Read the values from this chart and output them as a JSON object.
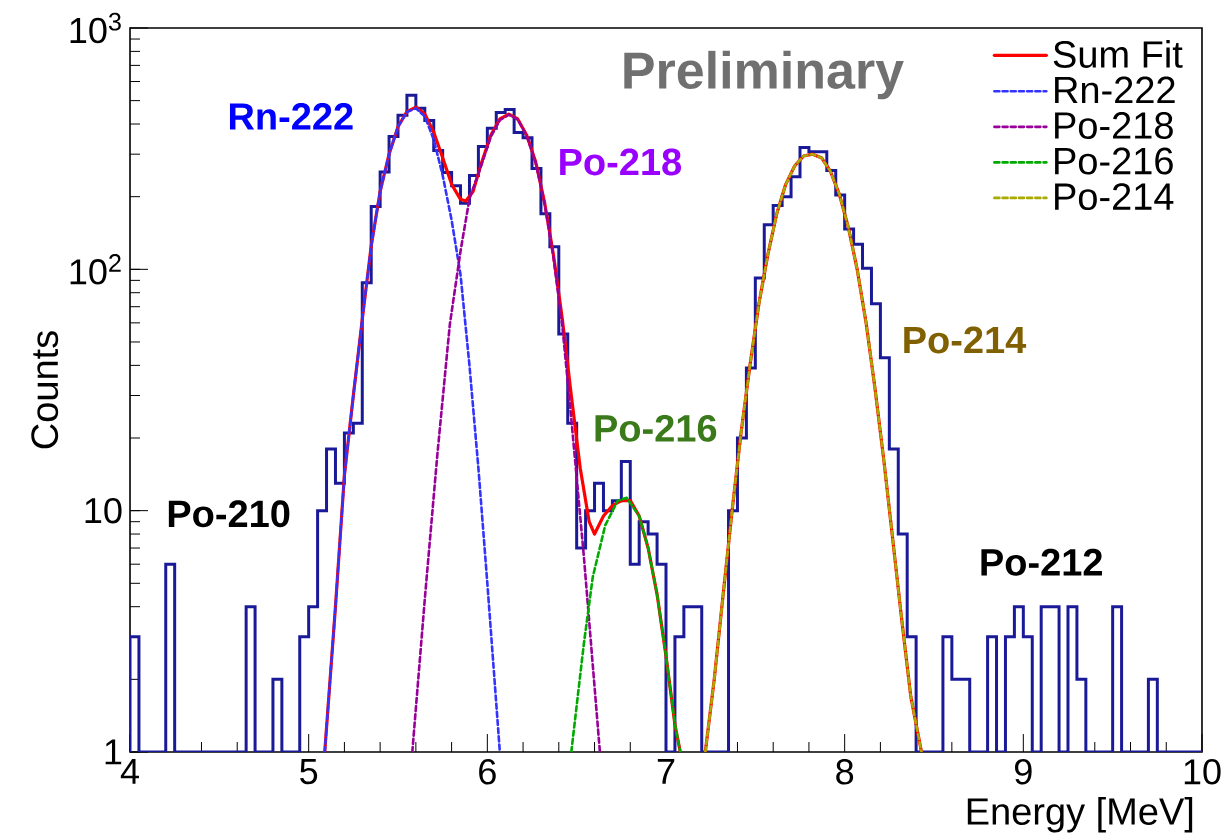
{
  "chart_data": {
    "type": "histogram",
    "xlabel": "Energy [MeV]",
    "ylabel": "Counts",
    "color": "#1a1a99",
    "bins": [
      4,
      4.05,
      4.1,
      4.15,
      4.2,
      4.25,
      4.3,
      4.35,
      4.4,
      4.45,
      4.5,
      4.55,
      4.6,
      4.65,
      4.7,
      4.75,
      4.8,
      4.85,
      4.9,
      4.95,
      5,
      5.05,
      5.1,
      5.15,
      5.2,
      5.25,
      5.3,
      5.35,
      5.4,
      5.45,
      5.5,
      5.55,
      5.6,
      5.65,
      5.7,
      5.75,
      5.8,
      5.85,
      5.9,
      5.95,
      6,
      6.05,
      6.1,
      6.15,
      6.2,
      6.25,
      6.3,
      6.35,
      6.4,
      6.45,
      6.5,
      6.55,
      6.6,
      6.65,
      6.7,
      6.75,
      6.8,
      6.85,
      6.9,
      6.95,
      7,
      7.05,
      7.1,
      7.15,
      7.2,
      7.25,
      7.3,
      7.35,
      7.4,
      7.45,
      7.5,
      7.55,
      7.6,
      7.65,
      7.7,
      7.75,
      7.8,
      7.85,
      7.9,
      7.95,
      8,
      8.05,
      8.1,
      8.15,
      8.2,
      8.25,
      8.3,
      8.35,
      8.4,
      8.45,
      8.5,
      8.55,
      8.6,
      8.65,
      8.7,
      8.75,
      8.8,
      8.85,
      8.9,
      8.95,
      9,
      9.05,
      9.1,
      9.15,
      9.2,
      9.25,
      9.3,
      9.35,
      9.4,
      9.45,
      9.5,
      9.55,
      9.6,
      9.65,
      9.7,
      9.75,
      9.8,
      9.85,
      9.9,
      9.95,
      10
    ],
    "values": [
      3,
      1,
      1,
      1,
      6,
      1,
      1,
      1,
      1,
      1,
      1,
      1,
      1,
      4,
      1,
      1,
      2,
      1,
      1,
      3,
      4,
      10,
      18,
      13,
      21,
      23,
      88,
      182,
      253,
      355,
      435,
      527,
      465,
      414,
      311,
      252,
      222,
      188,
      245,
      323,
      384,
      447,
      459,
      369,
      351,
      262,
      170,
      124,
      54,
      23,
      7,
      10,
      13,
      10,
      11,
      16,
      6,
      9,
      8,
      6,
      1,
      3,
      4,
      4,
      1,
      1,
      1,
      10,
      20,
      39,
      92,
      153,
      184,
      200,
      242,
      320,
      307,
      307,
      257,
      203,
      147,
      127,
      101,
      72,
      43,
      18,
      8,
      3,
      1,
      1,
      1,
      3,
      2,
      2,
      1,
      1,
      3,
      1,
      3,
      4,
      3,
      1,
      4,
      4,
      1,
      4,
      2,
      1,
      1,
      1,
      4,
      1,
      1,
      1,
      2,
      1,
      1,
      1,
      1,
      1
    ],
    "series": [
      {
        "name": "Sum Fit",
        "type": "line",
        "color": "#ff0000",
        "line_style": "solid",
        "x": [
          5.09,
          5.15,
          5.2,
          5.25,
          5.3,
          5.35,
          5.4,
          5.45,
          5.5,
          5.55,
          5.6,
          5.65,
          5.7,
          5.75,
          5.8,
          5.85,
          5.88,
          5.92,
          5.97,
          6.02,
          6.07,
          6.12,
          6.17,
          6.22,
          6.27,
          6.32,
          6.37,
          6.42,
          6.47,
          6.52,
          6.57,
          6.6,
          6.65,
          6.7,
          6.75,
          6.8,
          6.85,
          6.9,
          6.95,
          7.0,
          7.05,
          7.08,
          7.15,
          7.22,
          7.27,
          7.32,
          7.37,
          7.42,
          7.47,
          7.52,
          7.57,
          7.62,
          7.67,
          7.72,
          7.77,
          7.82,
          7.87,
          7.92,
          7.97,
          8.02,
          8.07,
          8.12,
          8.17,
          8.22,
          8.27,
          8.32,
          8.37,
          8.43
        ],
        "values": [
          1,
          4,
          14,
          30,
          62,
          125,
          210,
          300,
          390,
          450,
          470,
          440,
          370,
          290,
          225,
          195,
          192,
          210,
          280,
          360,
          420,
          440,
          420,
          360,
          280,
          190,
          115,
          62,
          30,
          15,
          9,
          8,
          9.5,
          10.5,
          11,
          11,
          9.5,
          7,
          4.5,
          2.5,
          1.3,
          1,
          null,
          1,
          2,
          4.5,
          10,
          21,
          40,
          72,
          115,
          170,
          225,
          268,
          295,
          300,
          290,
          255,
          205,
          150,
          100,
          60,
          32,
          16,
          7.5,
          3.5,
          1.7,
          1
        ]
      },
      {
        "name": "Rn-222",
        "type": "line",
        "color": "#3333ff",
        "line_style": "dotted",
        "x": [
          5.09,
          5.15,
          5.2,
          5.25,
          5.3,
          5.35,
          5.4,
          5.45,
          5.5,
          5.55,
          5.6,
          5.65,
          5.7,
          5.75,
          5.8,
          5.85,
          5.9,
          5.95,
          6.0,
          6.04,
          6.07
        ],
        "values": [
          1,
          4,
          14,
          30,
          62,
          125,
          210,
          300,
          390,
          448,
          465,
          430,
          345,
          245,
          160,
          95,
          40,
          15,
          5,
          2,
          1
        ]
      },
      {
        "name": "Po-218",
        "type": "line",
        "color": "#990099",
        "line_style": "dotted",
        "x": [
          5.58,
          5.65,
          5.72,
          5.79,
          5.85,
          5.9,
          5.97,
          6.02,
          6.07,
          6.12,
          6.17,
          6.22,
          6.27,
          6.32,
          6.37,
          6.42,
          6.47,
          6.54,
          6.59,
          6.63
        ],
        "values": [
          1,
          4.3,
          17,
          59,
          119,
          196,
          275,
          355,
          415,
          437,
          418,
          358,
          278,
          188,
          112,
          58,
          24,
          6.5,
          2.3,
          1
        ]
      },
      {
        "name": "Po-216",
        "type": "line",
        "color": "#00aa00",
        "line_style": "dotted",
        "x": [
          6.47,
          6.54,
          6.59,
          6.66,
          6.73,
          6.78,
          6.85,
          6.9,
          6.95,
          7.0,
          7.05,
          7.08
        ],
        "values": [
          1,
          2.8,
          5.3,
          8.7,
          11,
          11.3,
          9.5,
          7,
          4.5,
          2.5,
          1.3,
          1
        ]
      },
      {
        "name": "Po-214",
        "type": "line",
        "color": "#aaaa00",
        "line_style": "dotted",
        "x": [
          7.22,
          7.27,
          7.32,
          7.37,
          7.42,
          7.47,
          7.52,
          7.57,
          7.62,
          7.67,
          7.72,
          7.77,
          7.82,
          7.87,
          7.92,
          7.97,
          8.02,
          8.07,
          8.12,
          8.17,
          8.22,
          8.27,
          8.32,
          8.37,
          8.43
        ],
        "values": [
          1,
          2,
          4.5,
          10,
          21,
          40,
          72,
          115,
          170,
          225,
          268,
          295,
          300,
          290,
          255,
          205,
          150,
          100,
          60,
          32,
          16,
          7.5,
          3.5,
          1.7,
          1
        ]
      }
    ],
    "annotations": [
      "Rn-222",
      "Po-218",
      "Po-216",
      "Po-214",
      "Po-210",
      "Po-212",
      "Preliminary"
    ],
    "xlim": [
      4,
      10
    ],
    "ylim": [
      1,
      1000
    ],
    "xticks": [
      4,
      5,
      6,
      7,
      8,
      9,
      10
    ],
    "yticks": [
      1,
      10,
      {
        "value": 100,
        "label": "10$^{2}$"
      },
      {
        "value": 1000,
        "label": "10$^{3}$"
      }
    ],
    "log": true,
    "legend": "top right"
  }
}
